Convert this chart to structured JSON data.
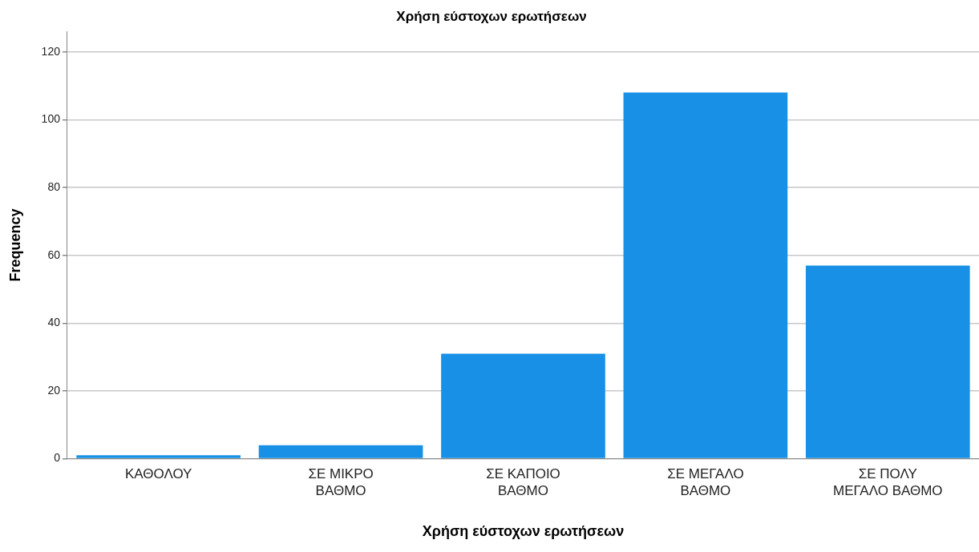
{
  "chart_data": {
    "type": "bar",
    "title": "Χρήση εύστοχων ερωτήσεων",
    "xlabel": "Χρήση εύστοχων ερωτήσεων",
    "ylabel": "Frequency",
    "categories": [
      "ΚΑΘΟΛΟΥ",
      "ΣΕ ΜΙΚΡΟ ΒΑΘΜΟ",
      "ΣΕ ΚΑΠΟΙΟ ΒΑΘΜΟ",
      "ΣΕ ΜΕΓΑΛΟ ΒΑΘΜΟ",
      "ΣΕ ΠΟΛΥ ΜΕΓΑΛΟ ΒΑΘΜΟ"
    ],
    "values": [
      1,
      4,
      31,
      108,
      57
    ],
    "color": "#1790e6",
    "ylim": [
      0,
      126
    ],
    "yticks": [
      0,
      20,
      40,
      60,
      80,
      100,
      120
    ],
    "grid": "y"
  }
}
